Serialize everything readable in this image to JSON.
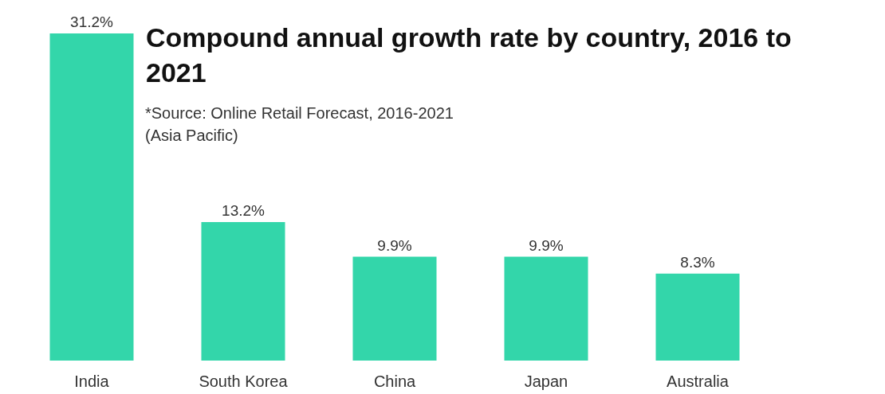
{
  "chart_data": {
    "type": "bar",
    "title": "Compound annual growth rate by country, 2016 to 2021",
    "annotations": [
      "*Source: Online Retail Forecast, 2016-2021 (Asia Pacific)"
    ],
    "categories": [
      "India",
      "South Korea",
      "China",
      "Japan",
      "Australia"
    ],
    "values": [
      31.2,
      13.2,
      9.9,
      9.9,
      8.3
    ],
    "value_labels": [
      "31.2%",
      "13.2%",
      "9.9%",
      "9.9%",
      "8.3%"
    ],
    "color": "#33d6aa"
  }
}
